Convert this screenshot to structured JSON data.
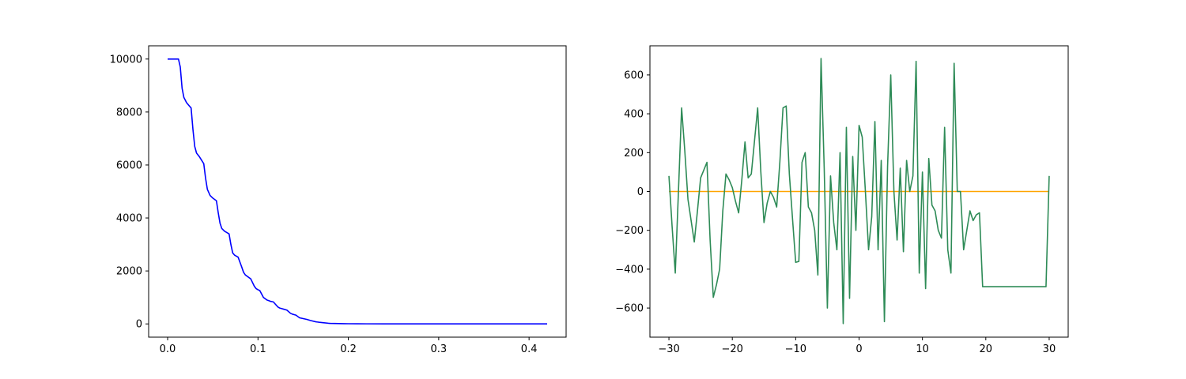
{
  "chart_data": [
    {
      "type": "line",
      "title": "",
      "xlabel": "",
      "ylabel": "",
      "xlim": [
        -0.021,
        0.441
      ],
      "ylim": [
        -500,
        10500
      ],
      "xticks": [
        0.0,
        0.1,
        0.2,
        0.3,
        0.4
      ],
      "xtick_labels": [
        "0.0",
        "0.1",
        "0.2",
        "0.3",
        "0.4"
      ],
      "yticks": [
        0,
        2000,
        4000,
        6000,
        8000,
        10000
      ],
      "ytick_labels": [
        "0",
        "2000",
        "4000",
        "6000",
        "8000",
        "10000"
      ],
      "grid": false,
      "series": [
        {
          "color": "#0000ff",
          "x": [
            0.0,
            0.012,
            0.014,
            0.016,
            0.018,
            0.021,
            0.026,
            0.028,
            0.03,
            0.032,
            0.035,
            0.04,
            0.042,
            0.044,
            0.047,
            0.05,
            0.054,
            0.056,
            0.058,
            0.06,
            0.063,
            0.068,
            0.07,
            0.072,
            0.074,
            0.078,
            0.082,
            0.084,
            0.086,
            0.088,
            0.092,
            0.096,
            0.098,
            0.1,
            0.102,
            0.106,
            0.11,
            0.112,
            0.114,
            0.117,
            0.122,
            0.124,
            0.126,
            0.128,
            0.132,
            0.136,
            0.138,
            0.14,
            0.142,
            0.146,
            0.15,
            0.152,
            0.154,
            0.158,
            0.164,
            0.166,
            0.168,
            0.172,
            0.178,
            0.18,
            0.185,
            0.195,
            0.2,
            0.21,
            0.22,
            0.24,
            0.27,
            0.3,
            0.35,
            0.42
          ],
          "y": [
            10000,
            10000,
            9700,
            8900,
            8550,
            8350,
            8150,
            7350,
            6700,
            6450,
            6320,
            6050,
            5500,
            5080,
            4850,
            4750,
            4650,
            4200,
            3800,
            3600,
            3500,
            3400,
            3000,
            2680,
            2600,
            2520,
            2150,
            1950,
            1850,
            1800,
            1700,
            1420,
            1330,
            1290,
            1260,
            1000,
            900,
            880,
            850,
            830,
            640,
            600,
            580,
            560,
            520,
            400,
            370,
            350,
            330,
            230,
            200,
            185,
            170,
            130,
            80,
            70,
            60,
            45,
            25,
            20,
            15,
            10,
            7,
            5,
            3,
            2,
            1,
            0,
            0,
            0
          ]
        }
      ]
    },
    {
      "type": "line",
      "title": "",
      "xlabel": "",
      "ylabel": "",
      "xlim": [
        -33,
        33
      ],
      "ylim": [
        -750,
        750
      ],
      "xticks": [
        -30,
        -20,
        -10,
        0,
        10,
        20,
        30
      ],
      "xtick_labels": [
        "−30",
        "−20",
        "−10",
        "0",
        "10",
        "20",
        "30"
      ],
      "yticks": [
        -600,
        -400,
        -200,
        0,
        200,
        400,
        600
      ],
      "ytick_labels": [
        "−600",
        "−400",
        "−200",
        "0",
        "200",
        "400",
        "600"
      ],
      "grid": false,
      "series": [
        {
          "color": "#ffa500",
          "x": [
            -30,
            30
          ],
          "y": [
            0,
            0
          ]
        },
        {
          "color": "#2e8b57",
          "x": [
            -30,
            -29.5,
            -29,
            -28.5,
            -28,
            -27.5,
            -27,
            -26.5,
            -26,
            -25.5,
            -25,
            -24.5,
            -24,
            -23.5,
            -23,
            -22.5,
            -22,
            -21.5,
            -21,
            -20.5,
            -20,
            -19.5,
            -19,
            -18.5,
            -18,
            -17.5,
            -17,
            -16.5,
            -16,
            -15.5,
            -15,
            -14.5,
            -14,
            -13.5,
            -13,
            -12.5,
            -12,
            -11.5,
            -11,
            -10.5,
            -10,
            -9.5,
            -9,
            -8.5,
            -8,
            -7.5,
            -7,
            -6.5,
            -6,
            -5.5,
            -5,
            -4.5,
            -4,
            -3.5,
            -3,
            -2.5,
            -2,
            -1.5,
            -1,
            -0.5,
            0,
            0.5,
            1,
            1.5,
            2,
            2.5,
            3,
            3.5,
            4,
            4.5,
            5,
            5.5,
            6,
            6.5,
            7,
            7.5,
            8,
            8.5,
            9,
            9.5,
            10,
            10.5,
            11,
            11.5,
            12,
            12.5,
            13,
            13.5,
            14,
            14.5,
            15,
            15.5,
            16,
            16.5,
            17,
            17.5,
            18,
            18.5,
            19,
            19.5,
            20,
            20.5,
            21,
            21.5,
            22,
            22.5,
            23,
            23.5,
            24,
            24.5,
            25,
            25.5,
            26,
            26.5,
            27,
            27.5,
            28,
            28.5,
            29,
            29.5,
            30
          ],
          "y": [
            80,
            -180,
            -420,
            0,
            430,
            210,
            -40,
            -150,
            -260,
            -100,
            70,
            110,
            150,
            -250,
            -545,
            -480,
            -400,
            -100,
            90,
            60,
            20,
            -50,
            -110,
            60,
            255,
            70,
            90,
            260,
            430,
            100,
            -160,
            -60,
            0,
            -30,
            -80,
            150,
            430,
            440,
            90,
            -140,
            -365,
            -360,
            150,
            200,
            -80,
            -110,
            -200,
            -430,
            685,
            120,
            -600,
            80,
            -160,
            -300,
            200,
            -680,
            330,
            -550,
            180,
            -200,
            340,
            280,
            0,
            -300,
            -130,
            360,
            -300,
            160,
            -670,
            130,
            600,
            0,
            -250,
            120,
            -310,
            160,
            0,
            80,
            670,
            -420,
            100,
            -500,
            170,
            -70,
            -100,
            -200,
            -240,
            330,
            -300,
            -420,
            660,
            0,
            0,
            -300,
            -200,
            -100,
            -150,
            -120,
            -110,
            -490,
            -490,
            -490,
            -490,
            -490,
            -490,
            -490,
            -490,
            -490,
            -490,
            -490,
            -490,
            -490,
            -490,
            -490,
            -490,
            -490,
            -490,
            -490,
            -490,
            -490,
            80
          ]
        }
      ]
    }
  ]
}
